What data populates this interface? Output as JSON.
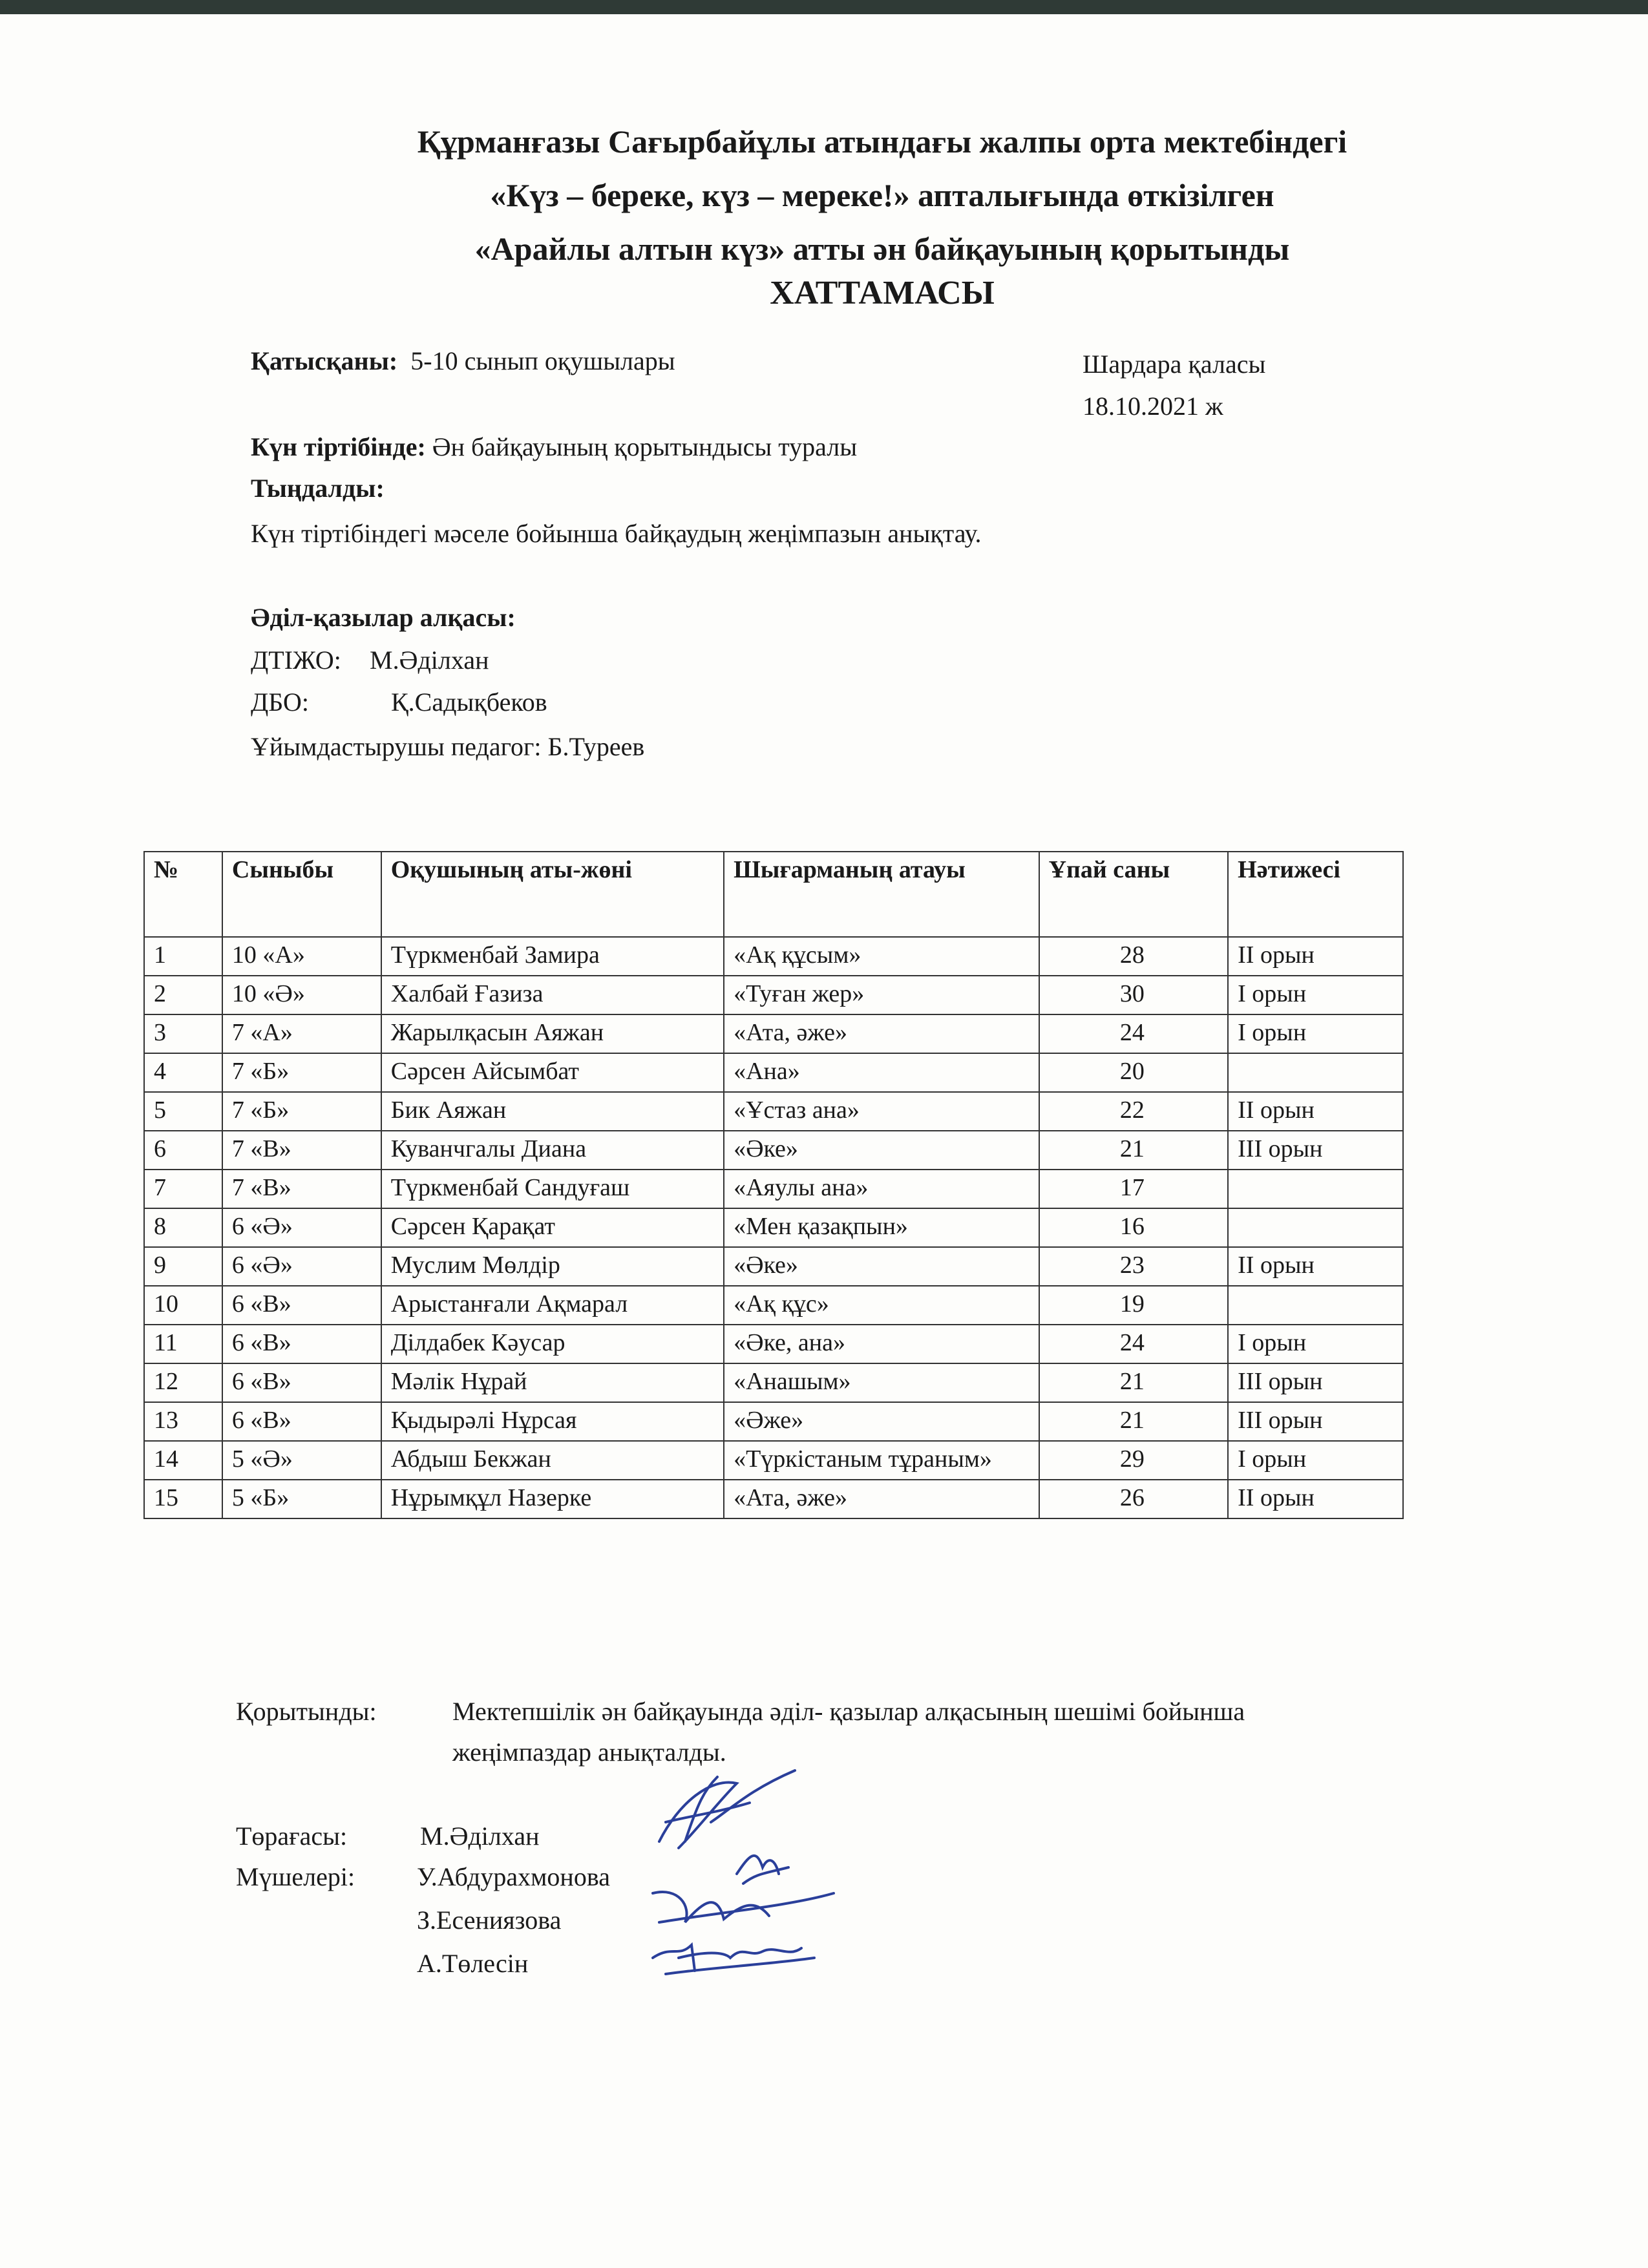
{
  "title": {
    "line1": "Құрманғазы Сағырбайұлы атындағы жалпы орта мектебіндегі",
    "line2": "«Күз – береке, күз – мереке!» апталығында өткізілген",
    "line3": "«Арайлы алтын күз» атты ән байқауының қорытынды",
    "line4": "ХАТТАМАСЫ"
  },
  "meta": {
    "participants_label": "Қатысқаны:",
    "participants_value": "5-10 сынып оқушылары",
    "place": "Шардара қаласы",
    "date": "18.10.2021 ж",
    "agenda_label": "Күн тіртібінде:",
    "agenda_value": "Ән  байқауының қорытындысы туралы",
    "heard_label": "Тыңдалды:",
    "heard_value": "Күн тіртібіндегі мәселе бойынша байқаудың жеңімпазын  анықтау."
  },
  "jury": {
    "heading": "Әділ-қазылар алқасы:",
    "members": [
      {
        "role": "ДТІЖО:",
        "name": "М.Әділхан"
      },
      {
        "role": "ДБО:",
        "name": "Қ.Садықбеков"
      }
    ],
    "organizer": "Ұйымдастырушы педагог: Б.Туреев"
  },
  "table": {
    "headers": [
      "№",
      "Сыныбы",
      "Оқушының аты-жөні",
      "Шығарманың атауы",
      "Ұпай саны",
      "Нәтижесі"
    ],
    "rows": [
      [
        "1",
        "10 «А»",
        "Түркменбай Замира",
        "«Ақ құсым»",
        "28",
        "ІІ орын"
      ],
      [
        "2",
        "10 «Ә»",
        "Халбай Ғазиза",
        "«Туған жер»",
        "30",
        "І орын"
      ],
      [
        "3",
        "7 «А»",
        "Жарылқасын Аяжан",
        "«Ата, әже»",
        "24",
        "І орын"
      ],
      [
        "4",
        "7 «Б»",
        "Сәрсен Айсымбат",
        "«Ана»",
        "20",
        ""
      ],
      [
        "5",
        "7 «Б»",
        "Бик Аяжан",
        "«Ұстаз ана»",
        "22",
        "ІІ орын"
      ],
      [
        "6",
        "7 «В»",
        "Куванчгалы Диана",
        "«Әке»",
        "21",
        "ІІІ орын"
      ],
      [
        "7",
        "7 «В»",
        "Түркменбай Сандуғаш",
        "«Аяулы ана»",
        "17",
        ""
      ],
      [
        "8",
        "6 «Ә»",
        "Сәрсен Қарақат",
        "«Мен қазақпын»",
        "16",
        ""
      ],
      [
        "9",
        "6 «Ә»",
        "Муслим Мөлдір",
        "«Әке»",
        "23",
        "ІІ орын"
      ],
      [
        "10",
        "6 «В»",
        "Арыстанғали Ақмарал",
        "«Ақ құс»",
        "19",
        ""
      ],
      [
        "11",
        "6 «В»",
        "Ділдабек Кәусар",
        "«Әке, ана»",
        "24",
        "І орын"
      ],
      [
        "12",
        "6 «В»",
        "Мәлік Нұрай",
        "«Анашым»",
        "21",
        "ІІІ орын"
      ],
      [
        "13",
        "6 «В»",
        "Қыдырәлі Нұрсая",
        "«Әже»",
        "21",
        "ІІІ орын"
      ],
      [
        "14",
        "5 «Ә»",
        "Абдыш Бекжан",
        "«Түркістаным тұраным»",
        "29",
        "І орын"
      ],
      [
        "15",
        "5 «Б»",
        "Нұрымқұл Назерке",
        "«Ата, әже»",
        "26",
        "ІІ орын"
      ]
    ]
  },
  "conclusion": {
    "label": "Қорытынды:",
    "line1": "Мектепшілік ән байқауында  әділ- қазылар алқасының шешімі бойынша",
    "line2": "жеңімпаздар анықталды."
  },
  "signatures": {
    "chair_label": "Төрағасы:",
    "chair_name": "М.Әділхан",
    "members_label": "Мүшелері:",
    "members": [
      "У.Абдурахмонова",
      "З.Есениязова",
      "А.Төлесін"
    ]
  }
}
